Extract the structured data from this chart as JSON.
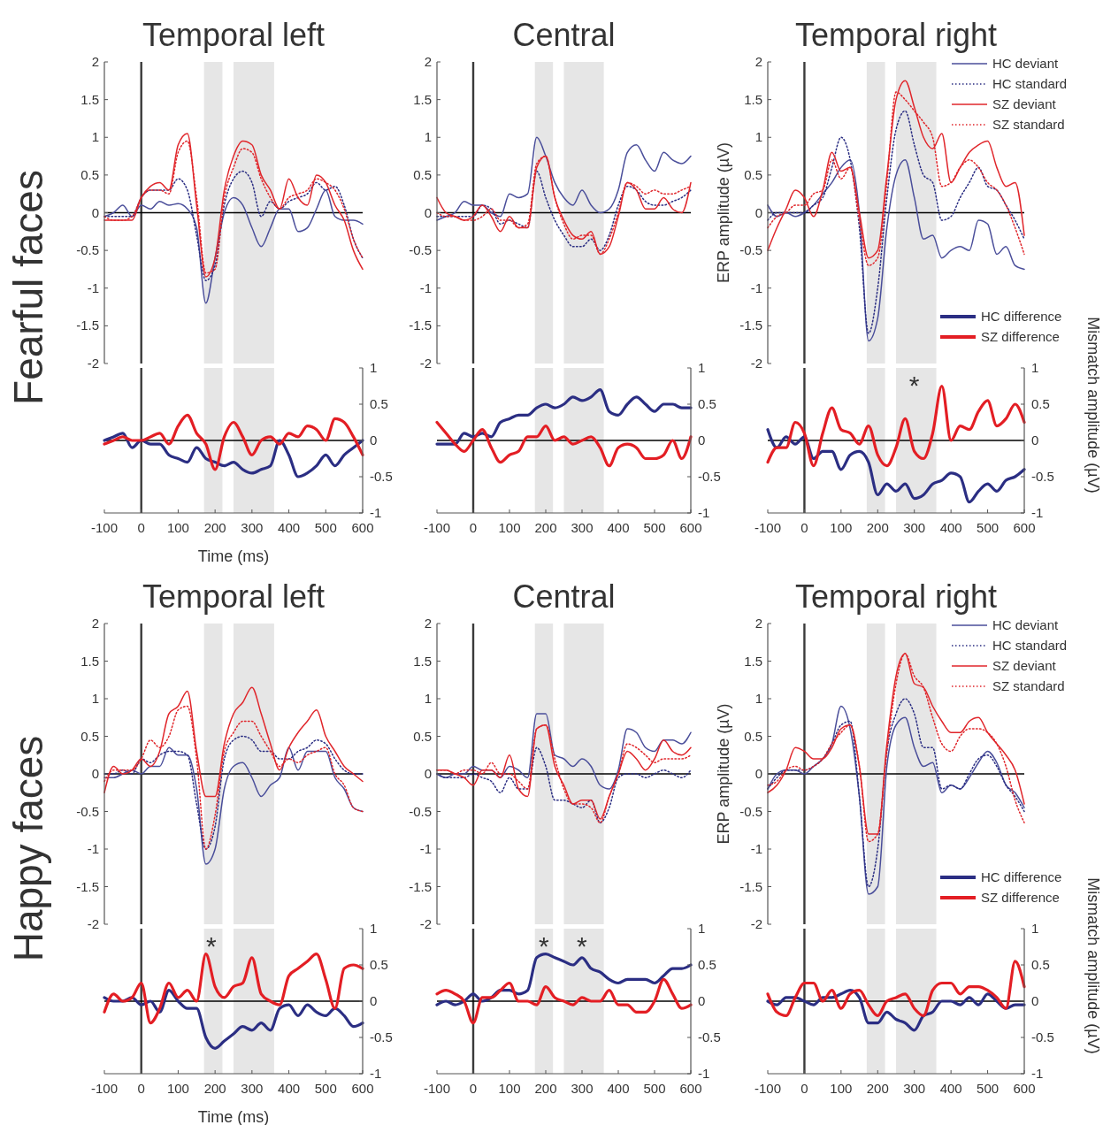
{
  "chart_data": [
    {
      "type": "line",
      "title": "Temporal left",
      "annotations": [
        "Fearful faces"
      ],
      "tick_labels": "y",
      "xlim": [
        -100,
        600
      ],
      "ylim": [
        -2,
        2
      ],
      "yticks": [
        -2,
        -1.5,
        -1,
        -0.5,
        0,
        0.5,
        1,
        1.5,
        2
      ],
      "x": [
        -100,
        -75,
        -50,
        -25,
        0,
        25,
        50,
        75,
        100,
        125,
        150,
        175,
        200,
        225,
        250,
        275,
        300,
        325,
        350,
        375,
        400,
        425,
        450,
        475,
        500,
        525,
        550,
        575,
        600
      ],
      "bands": [
        {
          "axis": "x",
          "from": 170,
          "to": 220,
          "color": "#e6e6e6"
        },
        {
          "axis": "x",
          "from": 250,
          "to": 360,
          "color": "#e6e6e6"
        }
      ],
      "ref_lines": [
        {
          "axis": "x",
          "value": 0,
          "color": "#3a3a3a"
        },
        {
          "axis": "y",
          "value": 0,
          "color": "#000000"
        }
      ],
      "series": [
        {
          "color": "#4a4e9a",
          "line_style": "solid",
          "values": [
            -0.05,
            0,
            0.1,
            -0.05,
            0.1,
            0.05,
            0.15,
            0.1,
            0.12,
            0.05,
            -0.2,
            -1.2,
            -0.6,
            0,
            0.2,
            0.1,
            -0.2,
            -0.45,
            -0.2,
            0.05,
            0.05,
            -0.25,
            -0.2,
            0.05,
            0.3,
            -0.05,
            -0.1,
            -0.1,
            -0.15
          ]
        },
        {
          "color": "#2b2e83",
          "line_style": "dotted",
          "values": [
            -0.05,
            -0.05,
            -0.05,
            -0.05,
            0.2,
            0.3,
            0.3,
            0.3,
            0.45,
            0.3,
            -0.3,
            -0.9,
            -0.7,
            0.1,
            0.45,
            0.55,
            0.4,
            -0.05,
            0.15,
            0.05,
            0.15,
            0.2,
            0.25,
            0.4,
            0.3,
            0.35,
            0.1,
            -0.35,
            -0.6
          ]
        },
        {
          "color": "#e0262b",
          "line_style": "solid",
          "values": [
            -0.1,
            -0.1,
            -0.1,
            -0.1,
            0.2,
            0.35,
            0.4,
            0.3,
            0.9,
            1.05,
            0.1,
            -0.85,
            -0.6,
            0.3,
            0.75,
            0.95,
            0.9,
            0.5,
            0.3,
            0.05,
            0.45,
            0.2,
            0.1,
            0.5,
            0.4,
            0.1,
            -0.1,
            -0.5,
            -0.75
          ]
        },
        {
          "color": "#e0262b",
          "line_style": "dotted",
          "values": [
            -0.05,
            -0.1,
            -0.1,
            -0.05,
            0.2,
            0.3,
            0.3,
            0.25,
            0.8,
            0.95,
            0.2,
            -0.8,
            -0.75,
            0.2,
            0.6,
            0.85,
            0.8,
            0.45,
            0.2,
            0.05,
            0.2,
            0.25,
            0.3,
            0.45,
            0.4,
            0.3,
            0.05,
            -0.35,
            -0.6
          ]
        }
      ]
    },
    {
      "type": "line",
      "xlabel": "Time (ms)",
      "xlim": [
        -100,
        600
      ],
      "xticks": [
        -100,
        0,
        100,
        200,
        300,
        400,
        500,
        600
      ],
      "ylim": [
        -1,
        1
      ],
      "yticks": [
        -1,
        -0.5,
        0,
        0.5,
        1
      ],
      "x": [
        -100,
        -75,
        -50,
        -25,
        0,
        25,
        50,
        75,
        100,
        125,
        150,
        175,
        200,
        225,
        250,
        275,
        300,
        325,
        350,
        375,
        400,
        425,
        450,
        475,
        500,
        525,
        550,
        575,
        600
      ],
      "bands": [
        {
          "axis": "x",
          "from": 170,
          "to": 220,
          "color": "#e6e6e6"
        },
        {
          "axis": "x",
          "from": 250,
          "to": 360,
          "color": "#e6e6e6"
        }
      ],
      "ref_lines": [
        {
          "axis": "x",
          "value": 0,
          "color": "#3a3a3a"
        },
        {
          "axis": "y",
          "value": 0,
          "color": "#000000"
        }
      ],
      "series": [
        {
          "color": "#2b2e83",
          "line_style": "solid",
          "values": [
            0,
            0.05,
            0.1,
            -0.1,
            0,
            -0.05,
            -0.05,
            -0.2,
            -0.25,
            -0.3,
            -0.1,
            -0.25,
            -0.3,
            -0.35,
            -0.3,
            -0.4,
            -0.45,
            -0.4,
            -0.35,
            0,
            -0.2,
            -0.5,
            -0.45,
            -0.35,
            -0.2,
            -0.35,
            -0.2,
            -0.1,
            0
          ]
        },
        {
          "color": "#e31e24",
          "line_style": "solid",
          "values": [
            -0.05,
            0,
            0.05,
            0,
            0,
            0.05,
            0.1,
            -0.05,
            0.2,
            0.35,
            0.1,
            -0.05,
            -0.4,
            0.05,
            0.25,
            0.05,
            -0.2,
            0,
            0.05,
            -0.05,
            0.1,
            0.05,
            0.2,
            0.15,
            0,
            0.3,
            0.25,
            0.05,
            -0.2
          ]
        }
      ]
    },
    {
      "type": "line",
      "title": "Central",
      "tick_labels": "y",
      "xlim": [
        -100,
        600
      ],
      "ylim": [
        -2,
        2
      ],
      "yticks": [
        -2,
        -1.5,
        -1,
        -0.5,
        0,
        0.5,
        1,
        1.5,
        2
      ],
      "x": [
        -100,
        -75,
        -50,
        -25,
        0,
        25,
        50,
        75,
        100,
        125,
        150,
        175,
        200,
        225,
        250,
        275,
        300,
        325,
        350,
        375,
        400,
        425,
        450,
        475,
        500,
        525,
        550,
        575,
        600
      ],
      "bands": [
        {
          "axis": "x",
          "from": 170,
          "to": 220,
          "color": "#e6e6e6"
        },
        {
          "axis": "x",
          "from": 250,
          "to": 360,
          "color": "#e6e6e6"
        }
      ],
      "ref_lines": [
        {
          "axis": "x",
          "value": 0,
          "color": "#3a3a3a"
        },
        {
          "axis": "y",
          "value": 0,
          "color": "#000000"
        }
      ],
      "series": [
        {
          "color": "#4a4e9a",
          "line_style": "solid",
          "values": [
            -0.1,
            -0.05,
            0,
            0.15,
            0.1,
            0.1,
            0,
            -0.05,
            0.25,
            0.2,
            0.25,
            1,
            0.75,
            0.4,
            0.2,
            0.1,
            0.3,
            0.1,
            0,
            0.05,
            0.3,
            0.8,
            0.9,
            0.7,
            0.55,
            0.8,
            0.7,
            0.65,
            0.75
          ]
        },
        {
          "color": "#2b2e83",
          "line_style": "dotted",
          "values": [
            -0.05,
            -0.05,
            -0.05,
            -0.05,
            -0.05,
            0.1,
            0.05,
            -0.15,
            -0.1,
            -0.15,
            -0.2,
            0.55,
            0.2,
            -0.1,
            -0.3,
            -0.45,
            -0.45,
            -0.35,
            -0.5,
            -0.3,
            0.1,
            0.35,
            0.3,
            0.15,
            0.1,
            0.1,
            0.15,
            0.2,
            0.3
          ]
        },
        {
          "color": "#e0262b",
          "line_style": "solid",
          "values": [
            0.2,
            0,
            -0.05,
            -0.1,
            -0.05,
            0.1,
            -0.05,
            -0.25,
            -0.05,
            -0.2,
            -0.2,
            0.6,
            0.75,
            0.2,
            -0.1,
            -0.3,
            -0.35,
            -0.25,
            -0.55,
            -0.45,
            -0.05,
            0.4,
            0.3,
            0.05,
            0.05,
            0.2,
            0.05,
            0,
            0.4
          ]
        },
        {
          "color": "#e0262b",
          "line_style": "dotted",
          "values": [
            0,
            -0.05,
            -0.05,
            -0.1,
            -0.1,
            -0.05,
            0.05,
            -0.1,
            -0.1,
            -0.2,
            -0.15,
            0.65,
            0.75,
            0.2,
            -0.15,
            -0.35,
            -0.3,
            -0.3,
            -0.55,
            -0.35,
            0,
            0.4,
            0.35,
            0.25,
            0.3,
            0.25,
            0.25,
            0.3,
            0.35
          ]
        }
      ]
    },
    {
      "type": "line",
      "xlim": [
        -100,
        600
      ],
      "xticks": [
        -100,
        0,
        100,
        200,
        300,
        400,
        500,
        600
      ],
      "ylim": [
        -1,
        1
      ],
      "yticks": [
        -1,
        -0.5,
        0,
        0.5,
        1
      ],
      "x": [
        -100,
        -75,
        -50,
        -25,
        0,
        25,
        50,
        75,
        100,
        125,
        150,
        175,
        200,
        225,
        250,
        275,
        300,
        325,
        350,
        375,
        400,
        425,
        450,
        475,
        500,
        525,
        550,
        575,
        600
      ],
      "bands": [
        {
          "axis": "x",
          "from": 170,
          "to": 220,
          "color": "#e6e6e6"
        },
        {
          "axis": "x",
          "from": 250,
          "to": 360,
          "color": "#e6e6e6"
        }
      ],
      "ref_lines": [
        {
          "axis": "x",
          "value": 0,
          "color": "#3a3a3a"
        },
        {
          "axis": "y",
          "value": 0,
          "color": "#000000"
        }
      ],
      "series": [
        {
          "color": "#2b2e83",
          "line_style": "solid",
          "values": [
            -0.05,
            -0.05,
            -0.05,
            0.1,
            0.05,
            0.1,
            0.05,
            0.25,
            0.3,
            0.35,
            0.35,
            0.45,
            0.5,
            0.45,
            0.5,
            0.6,
            0.55,
            0.6,
            0.7,
            0.4,
            0.35,
            0.5,
            0.6,
            0.5,
            0.4,
            0.5,
            0.5,
            0.45,
            0.45
          ]
        },
        {
          "color": "#e31e24",
          "line_style": "solid",
          "values": [
            0.25,
            0.1,
            -0.05,
            -0.15,
            0,
            0.15,
            -0.1,
            -0.3,
            -0.2,
            -0.15,
            0.05,
            0.05,
            0.2,
            0,
            0.05,
            -0.05,
            0,
            0.05,
            -0.1,
            -0.35,
            -0.1,
            -0.05,
            -0.1,
            -0.25,
            -0.25,
            -0.2,
            0,
            -0.25,
            0.05
          ]
        }
      ]
    },
    {
      "type": "line",
      "title": "Temporal right",
      "ylabel": "ERP amplitude (µV)",
      "legend": "top right",
      "tick_labels": "y",
      "xlim": [
        -100,
        600
      ],
      "ylim": [
        -2,
        2
      ],
      "yticks": [
        -2,
        -1.5,
        -1,
        -0.5,
        0,
        0.5,
        1,
        1.5,
        2
      ],
      "x": [
        -100,
        -75,
        -50,
        -25,
        0,
        25,
        50,
        75,
        100,
        125,
        150,
        175,
        200,
        225,
        250,
        275,
        300,
        325,
        350,
        375,
        400,
        425,
        450,
        475,
        500,
        525,
        550,
        575,
        600
      ],
      "bands": [
        {
          "axis": "x",
          "from": 170,
          "to": 220,
          "color": "#e6e6e6"
        },
        {
          "axis": "x",
          "from": 250,
          "to": 360,
          "color": "#e6e6e6"
        }
      ],
      "ref_lines": [
        {
          "axis": "x",
          "value": 0,
          "color": "#3a3a3a"
        },
        {
          "axis": "y",
          "value": 0,
          "color": "#000000"
        }
      ],
      "series": [
        {
          "name": "HC deviant",
          "color": "#4a4e9a",
          "line_style": "solid",
          "values": [
            0.1,
            -0.05,
            0,
            -0.05,
            0,
            0.1,
            0.25,
            0.4,
            0.6,
            0.7,
            0,
            -1.7,
            -1.4,
            -0.2,
            0.5,
            0.7,
            0.2,
            -0.35,
            -0.3,
            -0.6,
            -0.5,
            -0.45,
            -0.5,
            -0.1,
            -0.15,
            -0.55,
            -0.45,
            -0.7,
            -0.75
          ]
        },
        {
          "name": "HC standard",
          "color": "#2b2e83",
          "line_style": "dotted",
          "values": [
            -0.1,
            0,
            0,
            0,
            0,
            0.1,
            0.2,
            0.6,
            1,
            0.7,
            -0.2,
            -1.6,
            -1,
            0.2,
            1.1,
            1.35,
            0.9,
            0.5,
            0.4,
            -0.1,
            -0.05,
            0.2,
            0.4,
            0.6,
            0.35,
            0.3,
            0.1,
            -0.1,
            -0.35
          ]
        },
        {
          "name": "SZ deviant",
          "color": "#e0262b",
          "line_style": "solid",
          "values": [
            -0.5,
            -0.2,
            0.05,
            0.3,
            0.2,
            -0.05,
            0.3,
            0.8,
            0.55,
            0.6,
            0,
            -0.6,
            -0.5,
            0.5,
            1.5,
            1.75,
            1.4,
            1,
            0.85,
            1.05,
            0.4,
            0.6,
            0.8,
            0.9,
            0.95,
            0.6,
            0.35,
            0.4,
            -0.3
          ]
        },
        {
          "name": "SZ standard",
          "color": "#e0262b",
          "line_style": "dotted",
          "values": [
            -0.2,
            -0.05,
            0,
            0.1,
            0.1,
            0.25,
            0.3,
            0.7,
            0.45,
            0.6,
            -0.1,
            -0.7,
            -0.6,
            0.4,
            1.6,
            1.5,
            1.35,
            1.2,
            1,
            0.35,
            0.4,
            0.6,
            0.7,
            0.6,
            0.4,
            0.3,
            0.1,
            -0.2,
            -0.55
          ]
        }
      ]
    },
    {
      "type": "line",
      "ylabel": "Mismatch amplitude (µV)",
      "legend": "top right",
      "xlim": [
        -100,
        600
      ],
      "xticks": [
        -100,
        0,
        100,
        200,
        300,
        400,
        500,
        600
      ],
      "ylim": [
        -1,
        1
      ],
      "yticks": [
        -1,
        -0.5,
        0,
        0.5,
        1
      ],
      "annotations": [
        "*"
      ],
      "x": [
        -100,
        -75,
        -50,
        -25,
        0,
        25,
        50,
        75,
        100,
        125,
        150,
        175,
        200,
        225,
        250,
        275,
        300,
        325,
        350,
        375,
        400,
        425,
        450,
        475,
        500,
        525,
        550,
        575,
        600
      ],
      "bands": [
        {
          "axis": "x",
          "from": 170,
          "to": 220,
          "color": "#e6e6e6"
        },
        {
          "axis": "x",
          "from": 250,
          "to": 360,
          "color": "#e6e6e6"
        }
      ],
      "ref_lines": [
        {
          "axis": "x",
          "value": 0,
          "color": "#3a3a3a"
        },
        {
          "axis": "y",
          "value": 0,
          "color": "#000000"
        }
      ],
      "series": [
        {
          "name": "HC difference",
          "color": "#2b2e83",
          "line_style": "solid",
          "values": [
            0.15,
            -0.1,
            0.05,
            -0.05,
            0.05,
            -0.25,
            -0.15,
            -0.15,
            -0.4,
            -0.2,
            -0.15,
            -0.3,
            -0.75,
            -0.6,
            -0.7,
            -0.6,
            -0.8,
            -0.75,
            -0.6,
            -0.55,
            -0.45,
            -0.5,
            -0.85,
            -0.7,
            -0.6,
            -0.7,
            -0.55,
            -0.5,
            -0.4
          ]
        },
        {
          "name": "SZ difference",
          "color": "#e31e24",
          "line_style": "solid",
          "values": [
            -0.3,
            -0.1,
            -0.1,
            0.25,
            0.1,
            -0.35,
            0.1,
            0.45,
            0.15,
            0.1,
            -0.05,
            0.2,
            -0.2,
            -0.35,
            -0.1,
            0.3,
            -0.15,
            -0.25,
            0.1,
            0.75,
            0,
            0.2,
            0.15,
            0.4,
            0.55,
            0.2,
            0.3,
            0.5,
            0.25
          ]
        }
      ]
    },
    {
      "type": "line",
      "title": "Temporal left",
      "annotations": [
        "Happy faces"
      ],
      "tick_labels": "y",
      "xlim": [
        -100,
        600
      ],
      "ylim": [
        -2,
        2
      ],
      "yticks": [
        -2,
        -1.5,
        -1,
        -0.5,
        0,
        0.5,
        1,
        1.5,
        2
      ],
      "x": [
        -100,
        -75,
        -50,
        -25,
        0,
        25,
        50,
        75,
        100,
        125,
        150,
        175,
        200,
        225,
        250,
        275,
        300,
        325,
        350,
        375,
        400,
        425,
        450,
        475,
        500,
        525,
        550,
        575,
        600
      ],
      "bands": [
        {
          "axis": "x",
          "from": 170,
          "to": 220,
          "color": "#e6e6e6"
        },
        {
          "axis": "x",
          "from": 250,
          "to": 360,
          "color": "#e6e6e6"
        }
      ],
      "ref_lines": [
        {
          "axis": "x",
          "value": 0,
          "color": "#3a3a3a"
        },
        {
          "axis": "y",
          "value": 0,
          "color": "#000000"
        }
      ],
      "series": [
        {
          "color": "#4a4e9a",
          "line_style": "solid",
          "values": [
            -0.05,
            -0.05,
            0,
            0.05,
            0,
            0.1,
            0.1,
            0.35,
            0.25,
            0.25,
            -0.2,
            -1.2,
            -1,
            -0.2,
            0.1,
            0.15,
            -0.05,
            -0.3,
            -0.15,
            -0.05,
            0.35,
            0.05,
            0.3,
            0.3,
            0.3,
            -0.05,
            -0.2,
            -0.45,
            -0.5
          ]
        },
        {
          "color": "#2b2e83",
          "line_style": "dotted",
          "values": [
            0,
            0,
            0.05,
            0,
            0.2,
            0.15,
            0.25,
            0.3,
            0.3,
            0.25,
            -0.4,
            -1,
            -0.7,
            0.2,
            0.45,
            0.5,
            0.45,
            0.3,
            0.3,
            0.2,
            0.2,
            0.3,
            0.35,
            0.45,
            0.4,
            0.2,
            0.05,
            0,
            0
          ]
        },
        {
          "color": "#e0262b",
          "line_style": "solid",
          "values": [
            -0.25,
            0.1,
            0,
            0.05,
            0.2,
            0.1,
            0.3,
            0.8,
            0.9,
            1.1,
            0.3,
            -0.3,
            -0.3,
            0.4,
            0.8,
            0.95,
            1.15,
            0.8,
            0.4,
            0.05,
            0.35,
            0.55,
            0.7,
            0.85,
            0.5,
            0.3,
            0.1,
            0,
            -0.1
          ]
        },
        {
          "color": "#e0262b",
          "line_style": "dotted",
          "values": [
            -0.1,
            0.05,
            0.05,
            0.05,
            0.2,
            0.45,
            0.35,
            0.5,
            0.85,
            0.9,
            0.2,
            -1,
            -0.55,
            0.3,
            0.55,
            0.7,
            0.7,
            0.5,
            0.3,
            0.1,
            0.2,
            0.15,
            0.25,
            0.3,
            0.35,
            0,
            -0.15,
            -0.45,
            -0.5
          ]
        }
      ]
    },
    {
      "type": "line",
      "xlabel": "Time (ms)",
      "xlim": [
        -100,
        600
      ],
      "xticks": [
        -100,
        0,
        100,
        200,
        300,
        400,
        500,
        600
      ],
      "ylim": [
        -1,
        1
      ],
      "yticks": [
        -1,
        -0.5,
        0,
        0.5,
        1
      ],
      "annotations": [
        "*"
      ],
      "x": [
        -100,
        -75,
        -50,
        -25,
        0,
        25,
        50,
        75,
        100,
        125,
        150,
        175,
        200,
        225,
        250,
        275,
        300,
        325,
        350,
        375,
        400,
        425,
        450,
        475,
        500,
        525,
        550,
        575,
        600
      ],
      "bands": [
        {
          "axis": "x",
          "from": 170,
          "to": 220,
          "color": "#e6e6e6"
        },
        {
          "axis": "x",
          "from": 250,
          "to": 360,
          "color": "#e6e6e6"
        }
      ],
      "ref_lines": [
        {
          "axis": "x",
          "value": 0,
          "color": "#3a3a3a"
        },
        {
          "axis": "y",
          "value": 0,
          "color": "#000000"
        }
      ],
      "series": [
        {
          "color": "#2b2e83",
          "line_style": "solid",
          "values": [
            0.05,
            0,
            0,
            0.05,
            -0.05,
            0,
            -0.15,
            0.15,
            0,
            -0.1,
            -0.1,
            -0.5,
            -0.65,
            -0.55,
            -0.45,
            -0.35,
            -0.4,
            -0.3,
            -0.4,
            -0.1,
            -0.05,
            -0.2,
            -0.05,
            -0.15,
            -0.2,
            -0.1,
            -0.2,
            -0.35,
            -0.3
          ]
        },
        {
          "color": "#e31e24",
          "line_style": "solid",
          "values": [
            -0.15,
            0.1,
            0,
            0.05,
            0.25,
            -0.3,
            -0.1,
            0.25,
            0.05,
            0.15,
            0,
            0.65,
            0.2,
            0.05,
            0.2,
            0.25,
            0.6,
            0.1,
            0,
            -0.05,
            0.35,
            0.45,
            0.55,
            0.65,
            0.3,
            -0.1,
            0.45,
            0.5,
            0.45
          ]
        }
      ]
    },
    {
      "type": "line",
      "title": "Central",
      "tick_labels": "y",
      "xlim": [
        -100,
        600
      ],
      "ylim": [
        -2,
        2
      ],
      "yticks": [
        -2,
        -1.5,
        -1,
        -0.5,
        0,
        0.5,
        1,
        1.5,
        2
      ],
      "x": [
        -100,
        -75,
        -50,
        -25,
        0,
        25,
        50,
        75,
        100,
        125,
        150,
        175,
        200,
        225,
        250,
        275,
        300,
        325,
        350,
        375,
        400,
        425,
        450,
        475,
        500,
        525,
        550,
        575,
        600
      ],
      "bands": [
        {
          "axis": "x",
          "from": 170,
          "to": 220,
          "color": "#e6e6e6"
        },
        {
          "axis": "x",
          "from": 250,
          "to": 360,
          "color": "#e6e6e6"
        }
      ],
      "ref_lines": [
        {
          "axis": "x",
          "value": 0,
          "color": "#3a3a3a"
        },
        {
          "axis": "y",
          "value": 0,
          "color": "#000000"
        }
      ],
      "series": [
        {
          "color": "#4a4e9a",
          "line_style": "solid",
          "values": [
            0,
            -0.05,
            0,
            0,
            0.1,
            0.05,
            0.05,
            -0.05,
            0.1,
            0.05,
            -0.05,
            0.8,
            0.8,
            0.25,
            0.2,
            0.1,
            0.2,
            0.1,
            -0.15,
            -0.2,
            0.05,
            0.6,
            0.55,
            0.35,
            0.3,
            0.45,
            0.45,
            0.4,
            0.55
          ]
        },
        {
          "color": "#2b2e83",
          "line_style": "dotted",
          "values": [
            0,
            -0.05,
            -0.05,
            -0.05,
            0,
            -0.05,
            -0.1,
            -0.25,
            -0.05,
            -0.2,
            -0.2,
            0.35,
            0.1,
            -0.35,
            -0.35,
            -0.4,
            -0.45,
            -0.35,
            -0.65,
            -0.45,
            -0.05,
            0,
            0,
            -0.05,
            0,
            0.05,
            0,
            -0.05,
            0.05
          ]
        },
        {
          "color": "#e0262b",
          "line_style": "solid",
          "values": [
            0.05,
            0.05,
            0,
            -0.05,
            -0.15,
            0.05,
            0.05,
            -0.05,
            0.25,
            -0.2,
            -0.3,
            0.6,
            0.65,
            0.1,
            -0.15,
            -0.4,
            -0.35,
            -0.35,
            -0.6,
            -0.3,
            0,
            0.3,
            0.2,
            0.05,
            0.2,
            0.45,
            0.3,
            0.25,
            0.35
          ]
        },
        {
          "color": "#e0262b",
          "line_style": "dotted",
          "values": [
            0.05,
            0.05,
            0,
            0.05,
            0.05,
            0,
            0.15,
            0,
            0,
            -0.1,
            -0.2,
            0.6,
            0.65,
            0.2,
            -0.2,
            -0.4,
            -0.4,
            -0.45,
            -0.65,
            -0.3,
            0,
            0.4,
            0.35,
            0.25,
            0.15,
            0.2,
            0.2,
            0.2,
            0.25
          ]
        }
      ]
    },
    {
      "type": "line",
      "xlim": [
        -100,
        600
      ],
      "xticks": [
        -100,
        0,
        100,
        200,
        300,
        400,
        500,
        600
      ],
      "ylim": [
        -1,
        1
      ],
      "yticks": [
        -1,
        -0.5,
        0,
        0.5,
        1
      ],
      "annotations": [
        "*",
        "*"
      ],
      "x": [
        -100,
        -75,
        -50,
        -25,
        0,
        25,
        50,
        75,
        100,
        125,
        150,
        175,
        200,
        225,
        250,
        275,
        300,
        325,
        350,
        375,
        400,
        425,
        450,
        475,
        500,
        525,
        550,
        575,
        600
      ],
      "bands": [
        {
          "axis": "x",
          "from": 170,
          "to": 220,
          "color": "#e6e6e6"
        },
        {
          "axis": "x",
          "from": 250,
          "to": 360,
          "color": "#e6e6e6"
        }
      ],
      "ref_lines": [
        {
          "axis": "x",
          "value": 0,
          "color": "#3a3a3a"
        },
        {
          "axis": "y",
          "value": 0,
          "color": "#000000"
        }
      ],
      "series": [
        {
          "color": "#2b2e83",
          "line_style": "solid",
          "values": [
            -0.05,
            0,
            -0.05,
            0,
            0.1,
            0,
            0.05,
            0.15,
            0.15,
            0.1,
            0.15,
            0.6,
            0.65,
            0.6,
            0.55,
            0.5,
            0.6,
            0.45,
            0.4,
            0.3,
            0.25,
            0.3,
            0.3,
            0.3,
            0.25,
            0.35,
            0.45,
            0.45,
            0.5
          ]
        },
        {
          "color": "#e31e24",
          "line_style": "solid",
          "values": [
            0.1,
            0.15,
            0.1,
            0,
            -0.3,
            0.05,
            0.05,
            0.15,
            0.25,
            0,
            0,
            -0.05,
            0.2,
            0.05,
            0,
            -0.05,
            0.05,
            0,
            0,
            0.15,
            -0.05,
            -0.05,
            -0.15,
            -0.15,
            0,
            0.3,
            0.1,
            -0.1,
            -0.05
          ]
        }
      ]
    },
    {
      "type": "line",
      "title": "Temporal right",
      "ylabel": "ERP amplitude (µV)",
      "legend": "top right",
      "tick_labels": "y",
      "xlim": [
        -100,
        600
      ],
      "ylim": [
        -2,
        2
      ],
      "yticks": [
        -2,
        -1.5,
        -1,
        -0.5,
        0,
        0.5,
        1,
        1.5,
        2
      ],
      "x": [
        -100,
        -75,
        -50,
        -25,
        0,
        25,
        50,
        75,
        100,
        125,
        150,
        175,
        200,
        225,
        250,
        275,
        300,
        325,
        350,
        375,
        400,
        425,
        450,
        475,
        500,
        525,
        550,
        575,
        600
      ],
      "bands": [
        {
          "axis": "x",
          "from": 170,
          "to": 220,
          "color": "#e6e6e6"
        },
        {
          "axis": "x",
          "from": 250,
          "to": 360,
          "color": "#e6e6e6"
        }
      ],
      "ref_lines": [
        {
          "axis": "x",
          "value": 0,
          "color": "#3a3a3a"
        },
        {
          "axis": "y",
          "value": 0,
          "color": "#000000"
        }
      ],
      "series": [
        {
          "name": "HC deviant",
          "color": "#4a4e9a",
          "line_style": "solid",
          "values": [
            -0.2,
            0,
            0.05,
            0.05,
            0,
            0.1,
            0.2,
            0.4,
            0.9,
            0.6,
            -0.3,
            -1.6,
            -1.5,
            0.1,
            0.65,
            0.75,
            0.35,
            0.1,
            0.15,
            -0.25,
            -0.15,
            -0.2,
            -0.05,
            0.15,
            0.3,
            0.15,
            -0.15,
            -0.25,
            -0.45
          ]
        },
        {
          "name": "HC standard",
          "color": "#2b2e83",
          "line_style": "dotted",
          "values": [
            -0.2,
            -0.05,
            0.05,
            0.05,
            0.05,
            0.1,
            0.2,
            0.4,
            0.65,
            0.7,
            -0.3,
            -1.5,
            -1,
            0.3,
            0.8,
            1,
            0.8,
            0.35,
            0.35,
            -0.2,
            -0.15,
            -0.2,
            0,
            0.2,
            0.25,
            0.1,
            -0.15,
            -0.3,
            -0.5
          ]
        },
        {
          "name": "SZ deviant",
          "color": "#e0262b",
          "line_style": "solid",
          "values": [
            -0.25,
            -0.15,
            0.05,
            0.35,
            0.3,
            0.2,
            0.2,
            0.35,
            0.6,
            0.65,
            0.1,
            -0.8,
            -0.8,
            0.4,
            1.3,
            1.6,
            1.2,
            1.15,
            0.9,
            0.7,
            0.55,
            0.55,
            0.7,
            0.75,
            0.55,
            0.4,
            0.25,
            0.05,
            -0.4
          ]
        },
        {
          "name": "SZ standard",
          "color": "#e0262b",
          "line_style": "dotted",
          "values": [
            -0.15,
            -0.1,
            0.05,
            0.1,
            0.05,
            0.1,
            0.2,
            0.4,
            0.55,
            0.65,
            0.1,
            -0.9,
            -0.8,
            0.3,
            1.2,
            1.6,
            1.3,
            1.15,
            0.75,
            0.4,
            0.3,
            0.5,
            0.6,
            0.6,
            0.55,
            0.4,
            0.1,
            -0.35,
            -0.65
          ]
        }
      ]
    },
    {
      "type": "line",
      "ylabel": "Mismatch amplitude (µV)",
      "legend": "top right",
      "xlim": [
        -100,
        600
      ],
      "xticks": [
        -100,
        0,
        100,
        200,
        300,
        400,
        500,
        600
      ],
      "ylim": [
        -1,
        1
      ],
      "yticks": [
        -1,
        -0.5,
        0,
        0.5,
        1
      ],
      "x": [
        -100,
        -75,
        -50,
        -25,
        0,
        25,
        50,
        75,
        100,
        125,
        150,
        175,
        200,
        225,
        250,
        275,
        300,
        325,
        350,
        375,
        400,
        425,
        450,
        475,
        500,
        525,
        550,
        575,
        600
      ],
      "bands": [
        {
          "axis": "x",
          "from": 170,
          "to": 220,
          "color": "#e6e6e6"
        },
        {
          "axis": "x",
          "from": 250,
          "to": 360,
          "color": "#e6e6e6"
        }
      ],
      "ref_lines": [
        {
          "axis": "x",
          "value": 0,
          "color": "#3a3a3a"
        },
        {
          "axis": "y",
          "value": 0,
          "color": "#000000"
        }
      ],
      "series": [
        {
          "name": "HC difference",
          "color": "#2b2e83",
          "line_style": "solid",
          "values": [
            0,
            -0.05,
            0.05,
            0.05,
            0,
            -0.05,
            0.05,
            0.05,
            0.1,
            0.15,
            0.05,
            -0.3,
            -0.3,
            -0.15,
            -0.25,
            -0.3,
            -0.4,
            -0.2,
            -0.15,
            0,
            0,
            -0.05,
            0.05,
            -0.05,
            0.1,
            0,
            -0.1,
            -0.05,
            -0.05
          ]
        },
        {
          "name": "SZ difference",
          "color": "#e31e24",
          "line_style": "solid",
          "values": [
            0.1,
            -0.15,
            -0.2,
            0.05,
            0.25,
            0.25,
            0,
            0.15,
            -0.1,
            0.1,
            0.15,
            -0.05,
            -0.2,
            0,
            0.05,
            0.1,
            -0.1,
            -0.2,
            0.15,
            0.25,
            0.25,
            0.1,
            0.2,
            0.2,
            0.15,
            0.05,
            -0.1,
            0.55,
            0.2
          ]
        }
      ]
    }
  ]
}
